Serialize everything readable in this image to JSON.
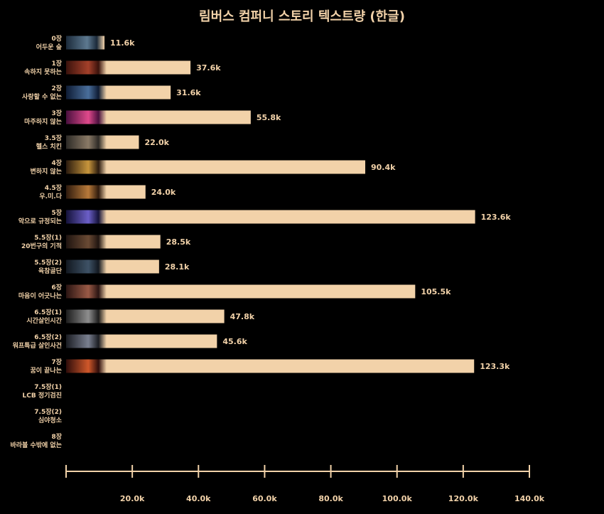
{
  "colors": {
    "background": "#000000",
    "bar": "#f2d2a9",
    "text": "#f2d2a9"
  },
  "chart_data": {
    "type": "bar",
    "orientation": "horizontal",
    "title": "림버스 컴퍼니 스토리 텍스트량 (한글)",
    "xlim": [
      0,
      140
    ],
    "xticks": [
      20,
      40,
      60,
      80,
      100,
      120,
      140
    ],
    "xtick_labels": [
      "20.0k",
      "40.0k",
      "60.0k",
      "80.0k",
      "100.0k",
      "120.0k",
      "140.0k"
    ],
    "categories": [
      {
        "chapter": "0장",
        "name": "어두운 숲",
        "value": 11.6,
        "label": "11.6k",
        "thumb": [
          "#1b2a3a",
          "#5d7990"
        ]
      },
      {
        "chapter": "1장",
        "name": "속하지 못하는",
        "value": 37.6,
        "label": "37.6k",
        "thumb": [
          "#3a120c",
          "#a4402a"
        ]
      },
      {
        "chapter": "2장",
        "name": "사랑할 수 없는",
        "value": 31.6,
        "label": "31.6k",
        "thumb": [
          "#0e1b33",
          "#4a6f9c"
        ]
      },
      {
        "chapter": "3장",
        "name": "마주하지 않는",
        "value": 55.8,
        "label": "55.8k",
        "thumb": [
          "#4a0f3e",
          "#e04a8c"
        ]
      },
      {
        "chapter": "3.5장",
        "name": "헬스 치킨",
        "value": 22.0,
        "label": "22.0k",
        "thumb": [
          "#2d2a26",
          "#8a7a66"
        ]
      },
      {
        "chapter": "4장",
        "name": "변하지 않는",
        "value": 90.4,
        "label": "90.4k",
        "thumb": [
          "#2a1a0e",
          "#c8963c"
        ]
      },
      {
        "chapter": "4.5장",
        "name": "우.미.다",
        "value": 24.0,
        "label": "24.0k",
        "thumb": [
          "#2e1a0d",
          "#b87a3a"
        ]
      },
      {
        "chapter": "5장",
        "name": "악으로 규정되는",
        "value": 123.6,
        "label": "123.6k",
        "thumb": [
          "#14123a",
          "#6c5fc8"
        ]
      },
      {
        "chapter": "5.5장(1)",
        "name": "20번구의 기적",
        "value": 28.5,
        "label": "28.5k",
        "thumb": [
          "#1f1410",
          "#6a4a34"
        ]
      },
      {
        "chapter": "5.5장(2)",
        "name": "육참골단",
        "value": 28.1,
        "label": "28.1k",
        "thumb": [
          "#121820",
          "#3e5266"
        ]
      },
      {
        "chapter": "6장",
        "name": "마음이 어긋나는",
        "value": 105.5,
        "label": "105.5k",
        "thumb": [
          "#2a1412",
          "#9a5a46"
        ]
      },
      {
        "chapter": "6.5장(1)",
        "name": "시간살인시간",
        "value": 47.8,
        "label": "47.8k",
        "thumb": [
          "#1c1c1c",
          "#8e8e8e"
        ]
      },
      {
        "chapter": "6.5장(2)",
        "name": "워프특급 살인사건",
        "value": 45.6,
        "label": "45.6k",
        "thumb": [
          "#1a1c22",
          "#7a8090"
        ]
      },
      {
        "chapter": "7장",
        "name": "꿈이 끝나는",
        "value": 123.3,
        "label": "123.3k",
        "thumb": [
          "#2e0c0a",
          "#d0582a"
        ]
      },
      {
        "chapter": "7.5장(1)",
        "name": "LCB 정기검진",
        "value": null,
        "label": "",
        "thumb": null
      },
      {
        "chapter": "7.5장(2)",
        "name": "심야청소",
        "value": null,
        "label": "",
        "thumb": null
      },
      {
        "chapter": "8장",
        "name": "바라볼 수밖에 없는",
        "value": null,
        "label": "",
        "thumb": null
      }
    ]
  }
}
